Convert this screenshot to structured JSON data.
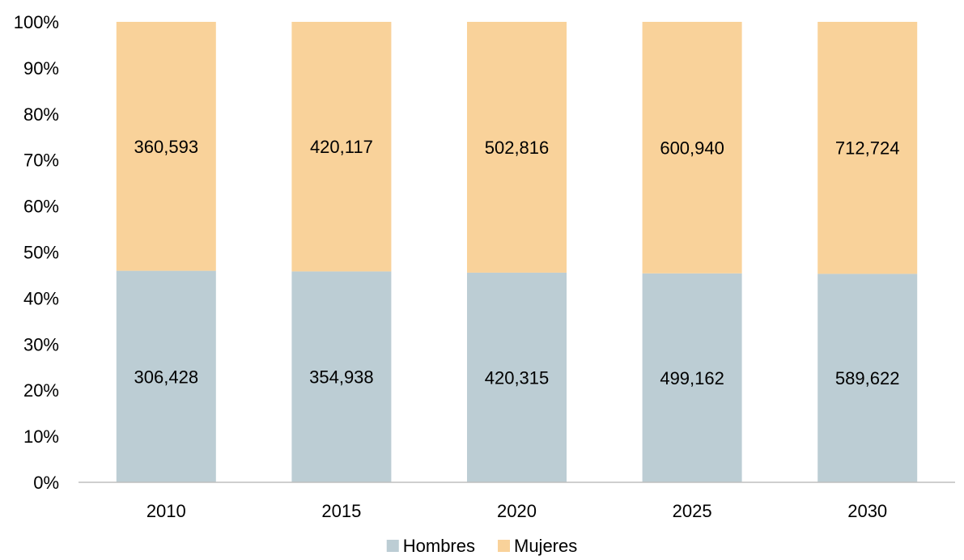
{
  "chart_data": {
    "type": "bar",
    "stacked": "percent",
    "categories": [
      "2010",
      "2015",
      "2020",
      "2025",
      "2030"
    ],
    "series": [
      {
        "name": "Hombres",
        "values": [
          306428,
          354938,
          420315,
          499162,
          589622
        ],
        "labels": [
          "306,428",
          "354,938",
          "420,315",
          "499,162",
          "589,622"
        ],
        "color": "#bccdd4"
      },
      {
        "name": "Mujeres",
        "values": [
          360593,
          420117,
          502816,
          600940,
          712724
        ],
        "labels": [
          "360,593",
          "420,117",
          "502,816",
          "600,940",
          "712,724"
        ],
        "color": "#f9d29a"
      }
    ],
    "y_ticks": [
      "0%",
      "10%",
      "20%",
      "30%",
      "40%",
      "50%",
      "60%",
      "70%",
      "80%",
      "90%",
      "100%"
    ],
    "ylim": [
      0,
      100
    ],
    "grid": false,
    "legend": {
      "position": "bottom",
      "entries": [
        "Hombres",
        "Mujeres"
      ]
    },
    "axis_color": "#bfbfbf"
  }
}
